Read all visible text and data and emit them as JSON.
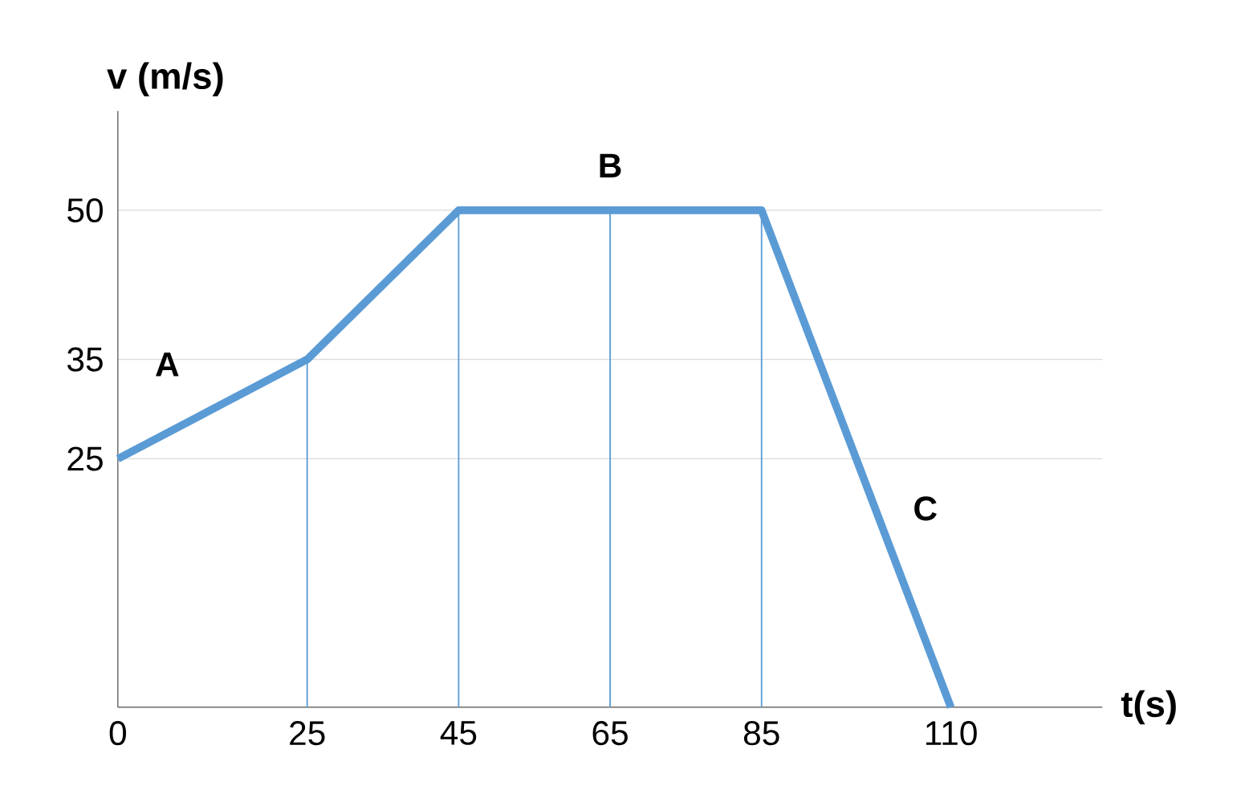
{
  "chart_data": {
    "type": "line",
    "xlabel": "t(s)",
    "ylabel": "v (m/s)",
    "x": [
      0,
      25,
      45,
      65,
      85,
      110
    ],
    "series": [
      {
        "color": "#5b9bd5",
        "values": [
          25,
          35,
          50,
          50,
          50,
          0
        ]
      }
    ],
    "xlim": [
      0,
      130
    ],
    "xticks": [
      0,
      25,
      45,
      65,
      85,
      110
    ],
    "ylim": [
      0,
      60
    ],
    "yticks": [
      25,
      35,
      50
    ],
    "grid": "y",
    "marker": "none",
    "line_style": "solid",
    "ref_lines": [
      {
        "axis": "x",
        "value": 25,
        "color": "#5b9bd5"
      },
      {
        "axis": "x",
        "value": 45,
        "color": "#5b9bd5"
      },
      {
        "axis": "x",
        "value": 65,
        "color": "#5b9bd5"
      },
      {
        "axis": "x",
        "value": 85,
        "color": "#5b9bd5"
      }
    ],
    "annotations": [
      {
        "text": "A",
        "x": 12.5,
        "y": 30
      },
      {
        "text": "B",
        "x": 65,
        "y": 50
      },
      {
        "text": "C",
        "x": 100,
        "y": 20
      }
    ]
  }
}
